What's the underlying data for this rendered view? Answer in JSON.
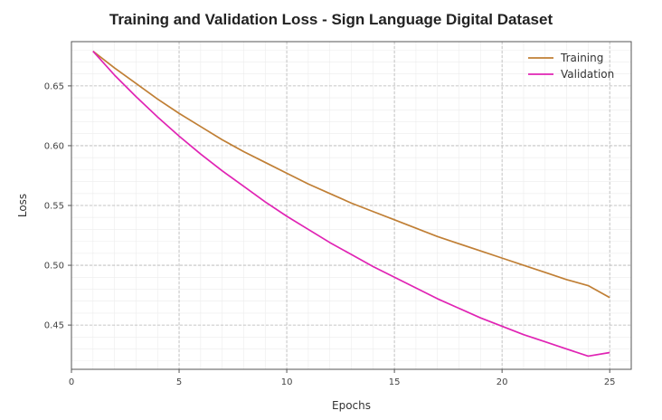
{
  "chart_data": {
    "type": "line",
    "title": "Training and Validation Loss - Sign Language Digital Dataset",
    "xlabel": "Epochs",
    "ylabel": "Loss",
    "xlim": [
      0,
      26
    ],
    "ylim": [
      0.413,
      0.687
    ],
    "xticks": [
      0,
      5,
      10,
      15,
      20,
      25
    ],
    "yticks": [
      0.45,
      0.5,
      0.55,
      0.6,
      0.65
    ],
    "ytick_labels": [
      "0.45",
      "0.50",
      "0.55",
      "0.60",
      "0.65"
    ],
    "grid": true,
    "legend_position": "top-right",
    "x": [
      1,
      2,
      3,
      4,
      5,
      6,
      7,
      8,
      9,
      10,
      11,
      12,
      13,
      14,
      15,
      16,
      17,
      18,
      19,
      20,
      21,
      22,
      23,
      24,
      25
    ],
    "series": [
      {
        "name": "Training",
        "color": "#c07f35",
        "values": [
          0.679,
          0.665,
          0.652,
          0.639,
          0.627,
          0.616,
          0.605,
          0.595,
          0.586,
          0.577,
          0.568,
          0.56,
          0.552,
          0.545,
          0.538,
          0.531,
          0.524,
          0.518,
          0.512,
          0.506,
          0.5,
          0.494,
          0.488,
          0.483,
          0.473
        ]
      },
      {
        "name": "Validation",
        "color": "#e024b4",
        "values": [
          0.679,
          0.659,
          0.641,
          0.624,
          0.608,
          0.593,
          0.579,
          0.566,
          0.553,
          0.541,
          0.53,
          0.519,
          0.509,
          0.499,
          0.49,
          0.481,
          0.472,
          0.464,
          0.456,
          0.449,
          0.442,
          0.436,
          0.43,
          0.424,
          0.427
        ]
      }
    ]
  }
}
